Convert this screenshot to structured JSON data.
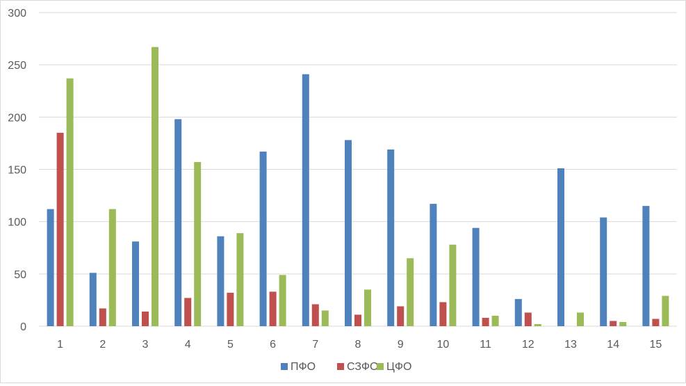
{
  "chart_data": {
    "type": "bar",
    "categories": [
      "1",
      "2",
      "3",
      "4",
      "5",
      "6",
      "7",
      "8",
      "9",
      "10",
      "11",
      "12",
      "13",
      "14",
      "15"
    ],
    "series": [
      {
        "name": "ПФО",
        "color": "#4f81bd",
        "values": [
          112,
          51,
          81,
          198,
          86,
          167,
          241,
          178,
          169,
          117,
          94,
          26,
          151,
          104,
          115
        ]
      },
      {
        "name": "СЗФО",
        "color": "#c0504d",
        "values": [
          185,
          17,
          14,
          27,
          32,
          33,
          21,
          11,
          19,
          23,
          8,
          13,
          0,
          5,
          7
        ]
      },
      {
        "name": "ЦФО",
        "color": "#9bbb59",
        "values": [
          237,
          112,
          267,
          157,
          89,
          49,
          15,
          35,
          65,
          78,
          10,
          2,
          13,
          4,
          29
        ]
      }
    ],
    "y_ticks": [
      "0",
      "50",
      "100",
      "150",
      "200",
      "250",
      "300"
    ],
    "ylim": [
      0,
      300
    ],
    "grid": true,
    "legend": "bottom-center",
    "title": "",
    "xlabel": "",
    "ylabel": ""
  }
}
